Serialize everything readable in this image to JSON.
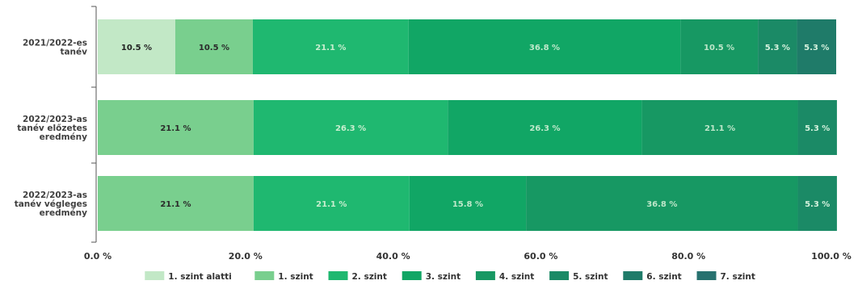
{
  "chart_data": {
    "type": "bar",
    "orientation": "horizontal",
    "stacked": true,
    "title": "",
    "xlabel": "",
    "ylabel": "",
    "xlim": [
      0,
      100
    ],
    "x_ticks": [
      0,
      20,
      40,
      60,
      80,
      100
    ],
    "x_tick_labels": [
      "0.0 %",
      "20.0 %",
      "40.0 %",
      "60.0 %",
      "80.0 %",
      "100.0 %"
    ],
    "grid": false,
    "legend_position": "bottom",
    "categories": [
      [
        "2021/2022-es",
        "tanév"
      ],
      [
        "2022/2023-as",
        "tanév előzetes",
        "eredmény"
      ],
      [
        "2022/2023-as",
        "tanév végleges",
        "eredmény"
      ]
    ],
    "series": [
      {
        "name": "1. szint alatti",
        "color": "#c2e8c6",
        "label_color": "#222222",
        "values": [
          10.5,
          0,
          0
        ],
        "labels": [
          "10.5 %",
          "",
          ""
        ]
      },
      {
        "name": "1. szint",
        "color": "#79cf8e",
        "label_color": "#2a2a2a",
        "values": [
          10.5,
          21.1,
          21.1
        ],
        "labels": [
          "10.5 %",
          "21.1 %",
          "21.1 %"
        ]
      },
      {
        "name": "2. szint",
        "color": "#1fb870",
        "label_color": "#c8eecf",
        "values": [
          21.1,
          26.3,
          21.1
        ],
        "labels": [
          "21.1 %",
          "26.3 %",
          "21.1 %"
        ]
      },
      {
        "name": "3. szint",
        "color": "#11a665",
        "label_color": "#bfe9cb",
        "values": [
          36.8,
          26.3,
          15.8
        ],
        "labels": [
          "36.8 %",
          "26.3 %",
          "15.8 %"
        ]
      },
      {
        "name": "4. szint",
        "color": "#179863",
        "label_color": "#bde6c9",
        "values": [
          10.5,
          21.1,
          36.8
        ],
        "labels": [
          "10.5 %",
          "21.1 %",
          "36.8 %"
        ]
      },
      {
        "name": "5. szint",
        "color": "#1b8a66",
        "label_color": "#d6f2de",
        "values": [
          5.3,
          5.3,
          5.3
        ],
        "labels": [
          "5.3 %",
          "5.3 %",
          "5.3 %"
        ]
      },
      {
        "name": "6. szint",
        "color": "#1f7b69",
        "label_color": "#d6f2de",
        "values": [
          5.3,
          0,
          0
        ],
        "labels": [
          "5.3 %",
          "",
          ""
        ]
      },
      {
        "name": "7. szint",
        "color": "#27716f",
        "label_color": "#d6f2de",
        "values": [
          0,
          0,
          0
        ],
        "labels": [
          "",
          "",
          ""
        ]
      }
    ]
  }
}
